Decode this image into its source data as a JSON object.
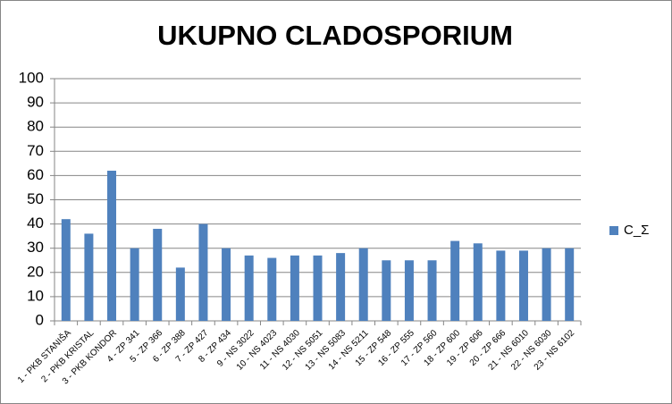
{
  "chart_data": {
    "type": "bar",
    "title": "UKUPNO CLADOSPORIUM",
    "categories": [
      "1 - PKB STANIŠA",
      "2 - PKB KRISTAL",
      "3 - PKB KONDOR",
      "4 - ZP 341",
      "5 - ZP 366",
      "6 - ZP 388",
      "7 - ZP 427",
      "8 - ZP 434",
      "9 - NS 3022",
      "10 - NS 4023",
      "11 - NS 4030",
      "12 - NS 5051",
      "13 - NS 5083",
      "14 - NS 5211",
      "15 - ZP 548",
      "16 - ZP 555",
      "17 - ZP 560",
      "18 - ZP 600",
      "19 - ZP 606",
      "20 - ZP 666",
      "21 - NS 6010",
      "22 - NS 6030",
      "23 - NS 6102"
    ],
    "series": [
      {
        "name": "C_Σ",
        "color": "#4f81bd",
        "values": [
          42,
          36,
          62,
          30,
          38,
          22,
          40,
          30,
          27,
          26,
          27,
          27,
          28,
          30,
          25,
          25,
          25,
          33,
          32,
          29,
          29,
          30,
          30
        ]
      }
    ],
    "ylim": [
      0,
      100
    ],
    "yticks": [
      0,
      10,
      20,
      30,
      40,
      50,
      60,
      70,
      80,
      90,
      100
    ],
    "grid": true,
    "legend": "right"
  }
}
